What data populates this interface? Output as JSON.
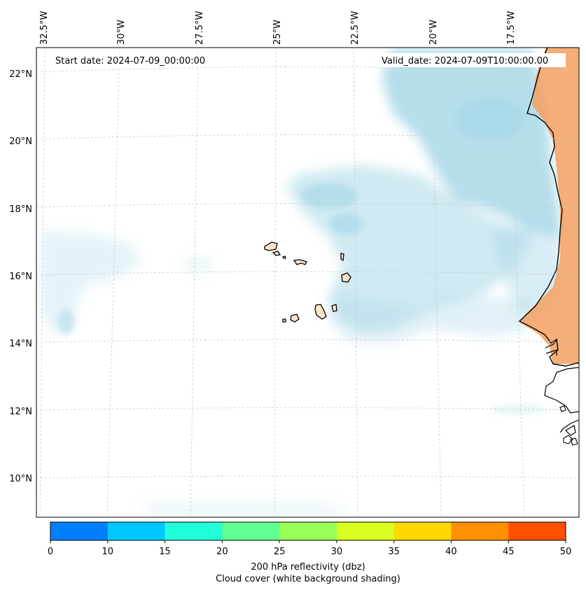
{
  "map": {
    "start_date_label": "Start date: 2024-07-09_00:00:00",
    "valid_date_label": "Valid_date: 2024-07-09T10:00:00.00",
    "lon_labels": [
      "32.5°W",
      "30°W",
      "27.5°W",
      "25°W",
      "22.5°W",
      "20°W",
      "17.5°W"
    ],
    "lat_labels": [
      "22°N",
      "20°N",
      "18°N",
      "16°N",
      "14°N",
      "12°N",
      "10°N"
    ]
  },
  "colorbar": {
    "ticks": [
      "0",
      "10",
      "15",
      "20",
      "25",
      "30",
      "35",
      "40",
      "45",
      "50"
    ],
    "colors": [
      "#0080ff",
      "#00c8ff",
      "#20ffd8",
      "#60ff90",
      "#98ff58",
      "#d8ff20",
      "#ffd800",
      "#ff9000",
      "#ff5000"
    ],
    "label_line1": "200 hPa reflectivity (dbz)",
    "label_line2": "Cloud cover (white background shading)"
  },
  "styles": {
    "cloud_color": "#a8d8e8",
    "land_color": "#f4a060",
    "island_color": "#fbe3cc"
  }
}
